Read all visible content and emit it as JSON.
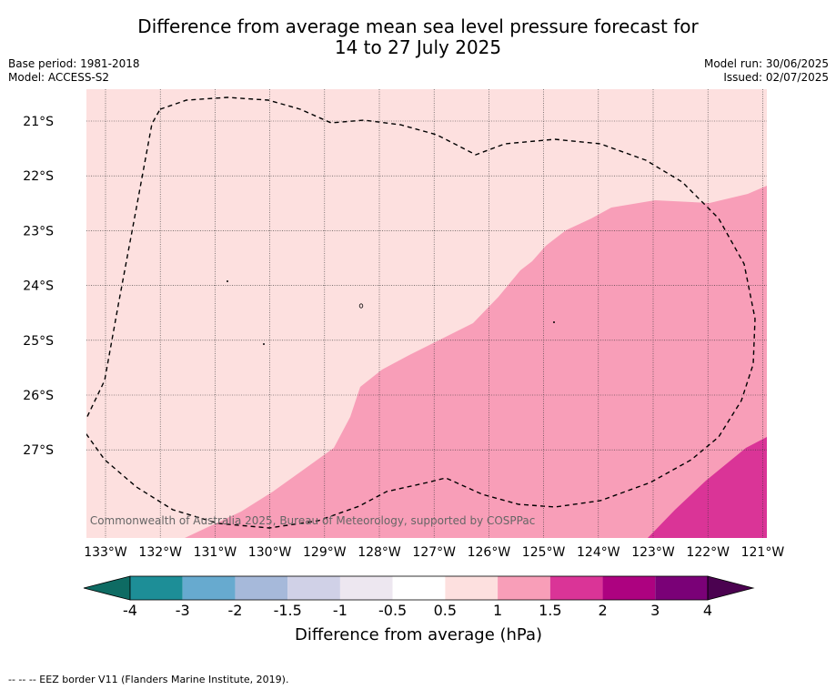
{
  "header": {
    "title_line1": "Difference from average mean sea level pressure forecast for",
    "title_line2": "14 to 27 July 2025",
    "base_period": "Base period: 1981-2018",
    "model": "Model: ACCESS-S2",
    "model_run": "Model run: 30/06/2025",
    "issued": "Issued: 02/07/2025"
  },
  "map": {
    "lat_labels": [
      "21°S",
      "22°S",
      "23°S",
      "24°S",
      "25°S",
      "26°S",
      "27°S"
    ],
    "lon_labels": [
      "133°W",
      "132°W",
      "131°W",
      "130°W",
      "129°W",
      "128°W",
      "127°W",
      "126°W",
      "125°W",
      "124°W",
      "123°W",
      "122°W",
      "121°W"
    ],
    "copyright": "© Commonwealth of Australia 2025, Bureau of Meteorology, supported by COSPPac",
    "colors": {
      "band_0_5_to_1": "#fde0df",
      "band_1_to_1_5": "#f89eb8",
      "band_1_5_to_2": "#da3497"
    }
  },
  "colorbar": {
    "ticks": [
      "-4",
      "-3",
      "-2",
      "-1.5",
      "-1",
      "-0.5",
      "0.5",
      "1",
      "1.5",
      "2",
      "3",
      "4"
    ],
    "colors": [
      "#0e6b63",
      "#1d8e97",
      "#67aacf",
      "#a6b9da",
      "#d0d1e7",
      "#ede7f0",
      "#ffffff",
      "#fde0df",
      "#f89eb8",
      "#da3497",
      "#ad0280",
      "#7a0177",
      "#4b0250"
    ],
    "label": "Difference from average (hPa)"
  },
  "footer": {
    "legend_text": "--  --  -- EEZ border V11 (Flanders Marine Institute, 2019)."
  }
}
